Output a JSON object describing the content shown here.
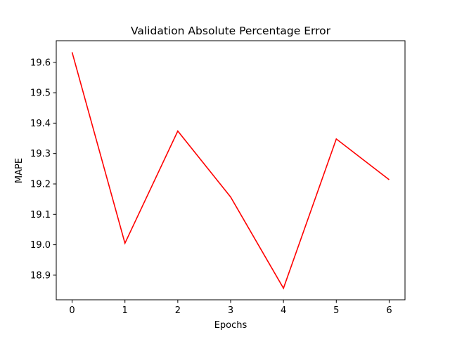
{
  "chart_data": {
    "type": "line",
    "title": "Validation Absolute Percentage Error",
    "xlabel": "Epochs",
    "ylabel": "MAPE",
    "x": [
      0,
      1,
      2,
      3,
      4,
      5,
      6
    ],
    "series": [
      {
        "values": [
          19.633,
          19.005,
          19.374,
          19.157,
          18.857,
          19.348,
          19.214
        ],
        "color": "#ff0000"
      }
    ],
    "xlim": [
      -0.3,
      6.3
    ],
    "ylim": [
      18.819,
      19.671
    ],
    "xticks": [
      "0",
      "1",
      "2",
      "3",
      "4",
      "5",
      "6"
    ],
    "yticks": [
      "18.9",
      "19.0",
      "19.1",
      "19.2",
      "19.3",
      "19.4",
      "19.5",
      "19.6"
    ],
    "grid": false,
    "legend": "none"
  }
}
